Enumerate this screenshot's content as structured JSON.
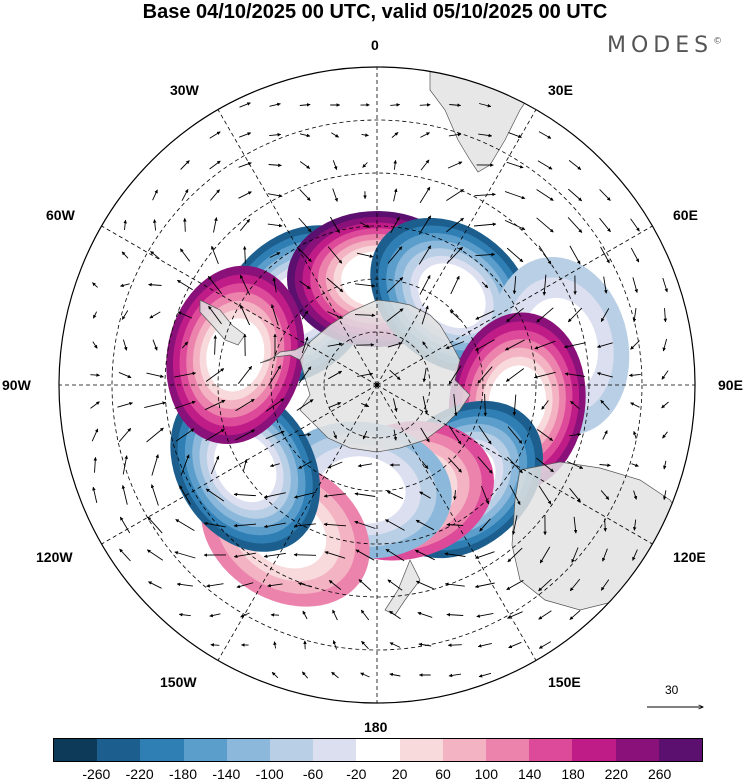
{
  "title": "Base 04/10/2025 00 UTC, valid 05/10/2025 00 UTC",
  "brand": "MODES",
  "brand_mark": "©",
  "longitude_labels": {
    "lon_0": "0",
    "lon_30e": "30E",
    "lon_60e": "60E",
    "lon_90e": "90E",
    "lon_120e": "120E",
    "lon_150e": "150E",
    "lon_180": "180",
    "lon_150w": "150W",
    "lon_120w": "120W",
    "lon_90w": "90W",
    "lon_60w": "60W",
    "lon_30w": "30W"
  },
  "reference_vector": "30",
  "colorbar": {
    "colors": [
      "#0e3a5a",
      "#1c5f8e",
      "#2f7fb5",
      "#5b9dcb",
      "#8cb9db",
      "#b9cfe5",
      "#dcdff0",
      "#ffffff",
      "#f8d9dc",
      "#f3b3c3",
      "#ec83ac",
      "#dd4a9a",
      "#c01c87",
      "#8a1179",
      "#5b0f6e"
    ],
    "labels": [
      "-260",
      "-220",
      "-180",
      "-140",
      "-100",
      "-60",
      "-20",
      "20",
      "60",
      "100",
      "140",
      "180",
      "220",
      "260"
    ]
  },
  "anomalies": [
    {
      "name": "neg-0-60w",
      "lon": -45,
      "colat": 32,
      "value": -250
    },
    {
      "name": "pos-0",
      "lon": 0,
      "colat": 30,
      "value": 270
    },
    {
      "name": "neg-30e",
      "lon": 40,
      "colat": 33,
      "value": -240
    },
    {
      "name": "neg-70e",
      "lon": 78,
      "colat": 53,
      "value": -80
    },
    {
      "name": "pos-90e",
      "lon": 97,
      "colat": 40,
      "value": 250
    },
    {
      "name": "neg-120e",
      "lon": 138,
      "colat": 36,
      "value": -240
    },
    {
      "name": "pos-160e",
      "lon": 165,
      "colat": 31,
      "value": 170
    },
    {
      "name": "neg-175w",
      "lon": -172,
      "colat": 30,
      "value": -130
    },
    {
      "name": "pos-150w",
      "lon": -148,
      "colat": 49,
      "value": 140
    },
    {
      "name": "neg-120w",
      "lon": -122,
      "colat": 44,
      "value": -240
    },
    {
      "name": "pos-80w",
      "lon": -78,
      "colat": 41,
      "value": 250
    }
  ]
}
